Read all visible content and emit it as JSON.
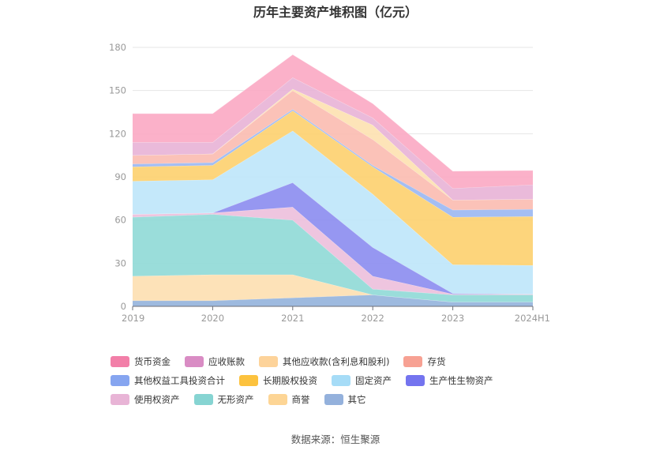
{
  "chart_data": {
    "type": "area",
    "stacked": true,
    "title": "历年主要资产堆积图（亿元）",
    "categories": [
      "2019",
      "2020",
      "2021",
      "2022",
      "2023",
      "2024H1"
    ],
    "ylim": [
      0,
      180
    ],
    "yticks": [
      0,
      30,
      60,
      90,
      120,
      150,
      180
    ],
    "grid": true,
    "legend_position": "bottom",
    "series": [
      {
        "name": "其它",
        "color": "#94b2dc",
        "values": [
          4,
          4,
          6,
          8,
          3,
          3
        ]
      },
      {
        "name": "商誉",
        "color": "#fddfb0",
        "values": [
          17,
          18,
          16,
          0,
          0,
          0
        ]
      },
      {
        "name": "无形资产",
        "color": "#8fd9d6",
        "values": [
          41,
          42,
          38,
          4,
          5,
          5
        ]
      },
      {
        "name": "使用权资产",
        "color": "#ecbfdb",
        "values": [
          2,
          1,
          9,
          9,
          0.5,
          0.5
        ]
      },
      {
        "name": "生产性生物资产",
        "color": "#8b8cf0",
        "values": [
          0,
          0,
          17,
          20,
          0.5,
          0
        ]
      },
      {
        "name": "固定资产",
        "color": "#bee6f9",
        "values": [
          23,
          23,
          36,
          37,
          20,
          20
        ]
      },
      {
        "name": "长期股权投资",
        "color": "#fdd06e",
        "values": [
          10,
          10,
          14,
          19,
          33,
          34
        ]
      },
      {
        "name": "其他权益工具投资合计",
        "color": "#9ab7f2",
        "values": [
          2,
          2,
          1,
          1,
          5,
          5
        ]
      },
      {
        "name": "存货",
        "color": "#fbbbb0",
        "values": [
          6,
          6,
          13,
          18,
          7,
          7
        ]
      },
      {
        "name": "其他应收款(含利息和股利)",
        "color": "#fde1b0",
        "values": [
          0,
          0,
          1,
          10,
          0,
          0
        ]
      },
      {
        "name": "应收账款",
        "color": "#e8b2d6",
        "values": [
          9,
          8,
          8,
          5,
          8,
          10
        ]
      },
      {
        "name": "货币资金",
        "color": "#fba8c3",
        "values": [
          20,
          20,
          16,
          10,
          12,
          10
        ]
      }
    ]
  },
  "legend": {
    "items": [
      {
        "name": "货币资金",
        "color": "#f27fa8"
      },
      {
        "name": "应收账款",
        "color": "#d98cc4"
      },
      {
        "name": "其他应收款(含利息和股利)",
        "color": "#fdd39a"
      },
      {
        "name": "存货",
        "color": "#f7a193"
      },
      {
        "name": "其他权益工具投资合计",
        "color": "#86a5f0"
      },
      {
        "name": "长期股权投资",
        "color": "#fcc23e"
      },
      {
        "name": "固定资产",
        "color": "#a6dcf7"
      },
      {
        "name": "生产性生物资产",
        "color": "#7474ef"
      },
      {
        "name": "使用权资产",
        "color": "#e8b4d6"
      },
      {
        "name": "无形资产",
        "color": "#86d4d2"
      },
      {
        "name": "商誉",
        "color": "#fdd595"
      },
      {
        "name": "其它",
        "color": "#94b1dc"
      }
    ]
  },
  "source": "数据来源：恒生聚源"
}
